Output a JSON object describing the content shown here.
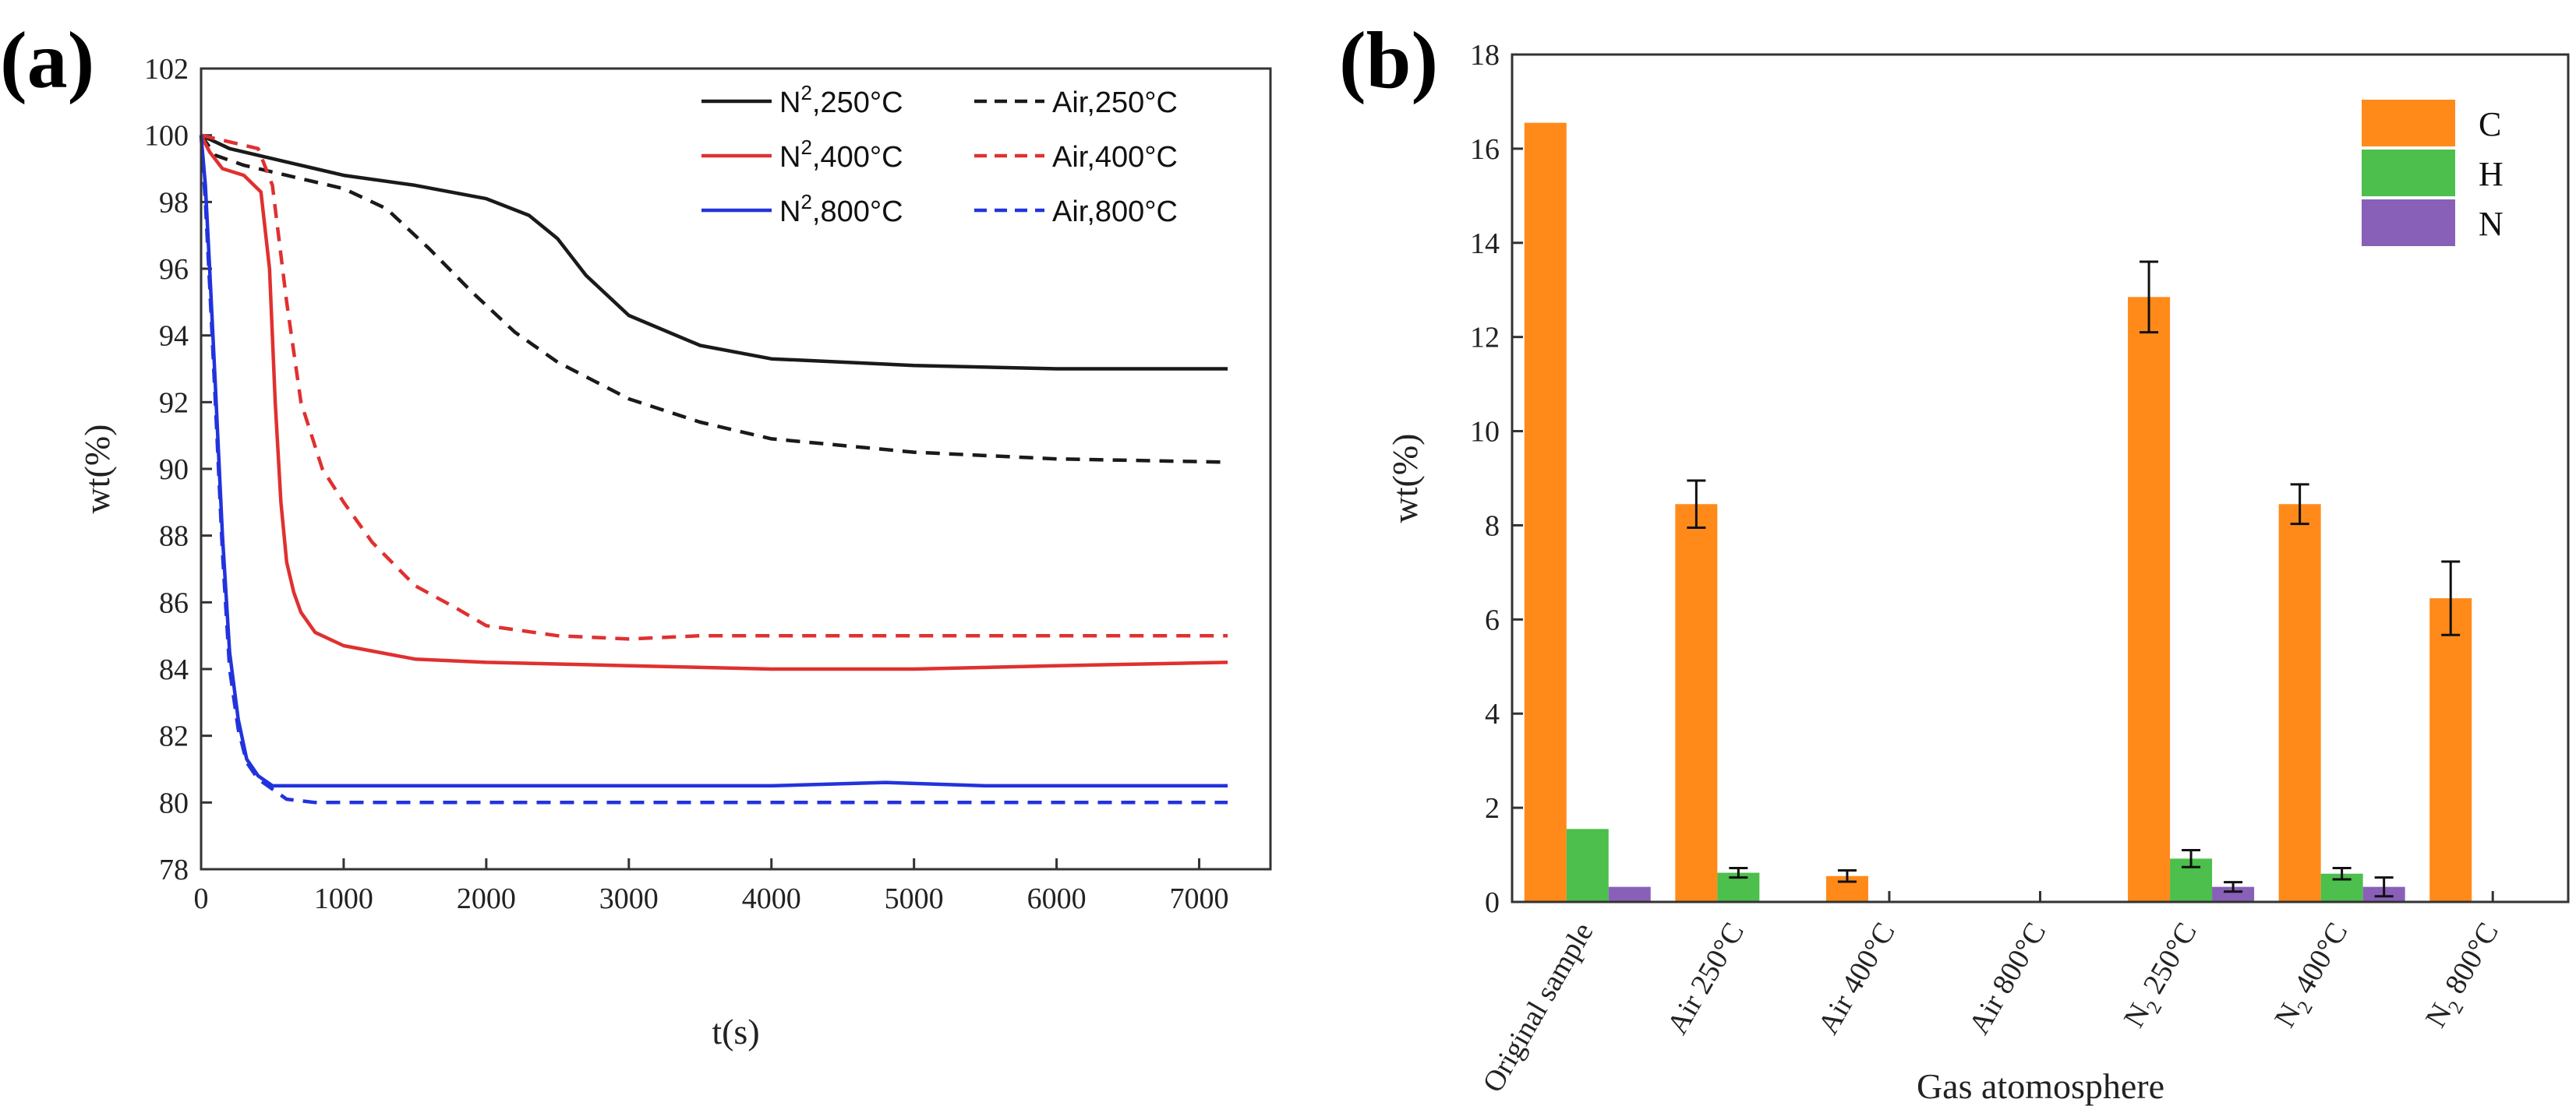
{
  "chart_data": [
    {
      "panel": "(a)",
      "type": "line",
      "xlabel": "t(s)",
      "ylabel": "wt(%)",
      "xlim": [
        0,
        7500
      ],
      "ylim": [
        78,
        102
      ],
      "xticks": [
        0,
        1000,
        2000,
        3000,
        4000,
        5000,
        6000,
        7000
      ],
      "yticks": [
        78,
        80,
        82,
        84,
        86,
        88,
        90,
        92,
        94,
        96,
        98,
        100,
        102
      ],
      "legend_position": "top-right",
      "series": [
        {
          "name": "N2,250°C",
          "legend_main": "N",
          "legend_sup": "2",
          "legend_rest": ",250°C",
          "color": "#1a1a1a",
          "style": "solid",
          "x": [
            0,
            100,
            200,
            500,
            800,
            1000,
            1500,
            2000,
            2300,
            2500,
            2700,
            3000,
            3500,
            4000,
            5000,
            6000,
            7200
          ],
          "y": [
            100,
            99.8,
            99.6,
            99.3,
            99.0,
            98.8,
            98.5,
            98.1,
            97.6,
            96.9,
            95.8,
            94.6,
            93.7,
            93.3,
            93.1,
            93.0,
            93.0
          ]
        },
        {
          "name": "Air,250°C",
          "legend_main": "Air,250°C",
          "legend_sup": "",
          "legend_rest": "",
          "color": "#1a1a1a",
          "style": "dashed",
          "x": [
            0,
            100,
            300,
            600,
            1000,
            1300,
            1600,
            1900,
            2200,
            2500,
            3000,
            3500,
            4000,
            5000,
            6000,
            7200
          ],
          "y": [
            100,
            99.4,
            99.1,
            98.8,
            98.4,
            97.8,
            96.6,
            95.3,
            94.1,
            93.2,
            92.1,
            91.4,
            90.9,
            90.5,
            90.3,
            90.2
          ]
        },
        {
          "name": "N2,400°C",
          "legend_main": "N",
          "legend_sup": "2",
          "legend_rest": ",400°C",
          "color": "#e03030",
          "style": "solid",
          "x": [
            0,
            60,
            150,
            300,
            420,
            480,
            520,
            560,
            600,
            650,
            700,
            800,
            1000,
            1500,
            2000,
            3000,
            4000,
            5000,
            6000,
            7200
          ],
          "y": [
            100,
            99.5,
            99.0,
            98.8,
            98.3,
            96.0,
            92.0,
            89.0,
            87.2,
            86.3,
            85.7,
            85.1,
            84.7,
            84.3,
            84.2,
            84.1,
            84.0,
            84.0,
            84.1,
            84.2
          ]
        },
        {
          "name": "Air,400°C",
          "legend_main": "Air,400°C",
          "legend_sup": "",
          "legend_rest": "",
          "color": "#e03030",
          "style": "dashed",
          "x": [
            0,
            200,
            400,
            500,
            600,
            700,
            850,
            1000,
            1200,
            1500,
            1800,
            2000,
            2500,
            3000,
            3500,
            5000,
            7200
          ],
          "y": [
            100,
            99.8,
            99.6,
            98.5,
            95.0,
            92.0,
            90.0,
            89.0,
            87.8,
            86.5,
            85.8,
            85.3,
            85.0,
            84.9,
            85.0,
            85.0,
            85.0
          ]
        },
        {
          "name": "N2,800°C",
          "legend_main": "N",
          "legend_sup": "2",
          "legend_rest": ",800°C",
          "color": "#2233dd",
          "style": "solid",
          "x": [
            0,
            30,
            60,
            100,
            150,
            200,
            260,
            320,
            400,
            500,
            1000,
            2000,
            3000,
            4000,
            4800,
            5500,
            7200
          ],
          "y": [
            100,
            98.5,
            96.0,
            92.5,
            88.0,
            84.5,
            82.5,
            81.3,
            80.8,
            80.5,
            80.5,
            80.5,
            80.5,
            80.5,
            80.6,
            80.5,
            80.5
          ]
        },
        {
          "name": "Air,800°C",
          "legend_main": "Air,800°C",
          "legend_sup": "",
          "legend_rest": "",
          "color": "#2233dd",
          "style": "dashed",
          "x": [
            0,
            30,
            60,
            100,
            150,
            200,
            260,
            320,
            400,
            500,
            600,
            800,
            1000,
            2000,
            4000,
            7200
          ],
          "y": [
            100,
            98.0,
            95.5,
            92.0,
            87.5,
            84.0,
            82.2,
            81.2,
            80.7,
            80.4,
            80.1,
            80.0,
            80.0,
            80.0,
            80.0,
            80.0
          ]
        }
      ]
    },
    {
      "panel": "(b)",
      "type": "bar",
      "xlabel": "Gas atomosphere",
      "ylabel": "wt(%)",
      "ylim": [
        0,
        18
      ],
      "yticks": [
        0,
        2,
        4,
        6,
        8,
        10,
        12,
        14,
        16,
        18
      ],
      "legend_position": "top-right",
      "categories": [
        "Original sample",
        "Air 250°C",
        "Air 400°C",
        "Air 800°C",
        "N2 250°C",
        "N2 400°C",
        "N2 800°C"
      ],
      "category_labels": [
        {
          "main": "Original sample",
          "sub": "",
          "rest": ""
        },
        {
          "main": "Air 250°C",
          "sub": "",
          "rest": ""
        },
        {
          "main": "Air 400°C",
          "sub": "",
          "rest": ""
        },
        {
          "main": "Air 800°C",
          "sub": "",
          "rest": ""
        },
        {
          "main": "N",
          "sub": "2",
          "rest": " 250°C"
        },
        {
          "main": "N",
          "sub": "2",
          "rest": " 400°C"
        },
        {
          "main": "N",
          "sub": "2",
          "rest": " 800°C"
        }
      ],
      "series": [
        {
          "name": "C",
          "color": "#ff8a1a",
          "values": [
            16.55,
            8.45,
            0.55,
            0,
            12.85,
            8.45,
            6.45
          ],
          "errors": [
            0,
            0.5,
            0.12,
            0,
            0.75,
            0.42,
            0.78
          ]
        },
        {
          "name": "H",
          "color": "#4cbf4c",
          "values": [
            1.55,
            0.62,
            0,
            0,
            0.92,
            0.6,
            0
          ],
          "errors": [
            0,
            0.1,
            0,
            0,
            0.18,
            0.12,
            0
          ]
        },
        {
          "name": "N",
          "color": "#8860b8",
          "values": [
            0.32,
            0,
            0,
            0,
            0.32,
            0.32,
            0
          ],
          "errors": [
            0,
            0,
            0,
            0,
            0.1,
            0.2,
            0
          ]
        }
      ]
    }
  ]
}
